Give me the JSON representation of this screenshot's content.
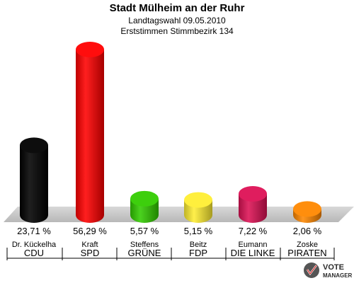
{
  "header": {
    "title": "Stadt Mülheim an der Ruhr",
    "subtitle": "Landtagswahl 09.05.2010",
    "subtitle2": "Erststimmen Stimmbezirk 134"
  },
  "chart_data": {
    "type": "bar",
    "title": "Stadt Mülheim an der Ruhr",
    "categories": [
      "CDU",
      "SPD",
      "GRÜNE",
      "FDP",
      "DIE LINKE",
      "PIRATEN"
    ],
    "candidates": [
      "Dr. Kückelha",
      "Kraft",
      "Steffens",
      "Beitz",
      "Eumann",
      "Zoske"
    ],
    "values": [
      23.71,
      56.29,
      5.57,
      5.15,
      7.22,
      2.06
    ],
    "labels": [
      "23,71 %",
      "56,29 %",
      "5,57 %",
      "5,15 %",
      "7,22 %",
      "2,06 %"
    ],
    "colors": [
      "#000000",
      "#ff0000",
      "#33cc00",
      "#ffee33",
      "#dd1155",
      "#ff8800"
    ],
    "ylim": [
      0,
      56.29
    ]
  },
  "logo": {
    "line1": "VOTE",
    "line2": "MANAGER"
  }
}
